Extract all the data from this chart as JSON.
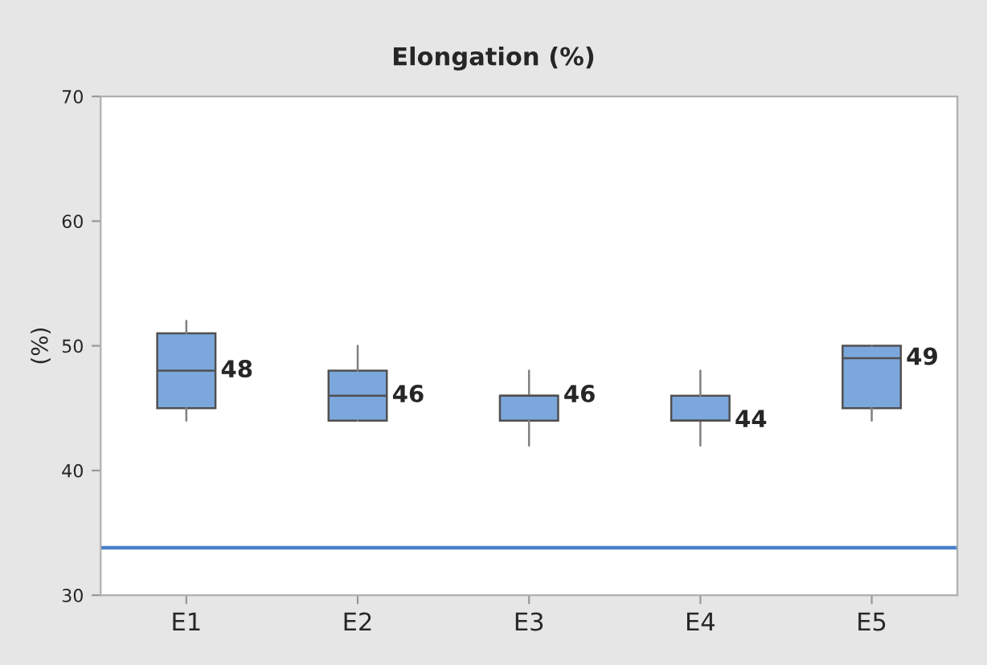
{
  "chart_data": {
    "type": "box",
    "title": "Elongation (%)",
    "ylabel": "(%)",
    "categories": [
      "E1",
      "E2",
      "E3",
      "E4",
      "E5"
    ],
    "boxes": [
      {
        "low": 44,
        "q1": 45,
        "median": 48,
        "q3": 51,
        "high": 52
      },
      {
        "low": 44,
        "q1": 44,
        "median": 46,
        "q3": 48,
        "high": 50
      },
      {
        "low": 42,
        "q1": 44,
        "median": 46,
        "q3": 46,
        "high": 48
      },
      {
        "low": 42,
        "q1": 44,
        "median": 44,
        "q3": 46,
        "high": 48
      },
      {
        "low": 44,
        "q1": 45,
        "median": 49,
        "q3": 50,
        "high": 50
      }
    ],
    "color": "#7ba7dc",
    "value_labels": [
      "48",
      "46",
      "46",
      "44",
      "49"
    ],
    "ylim": [
      30,
      70
    ],
    "yticks": [
      30,
      40,
      50,
      60,
      70
    ],
    "ref_lines": [
      {
        "axis": "y",
        "value": 33.8,
        "color": "#4a7fcb"
      }
    ],
    "grid": false,
    "legend": false
  }
}
